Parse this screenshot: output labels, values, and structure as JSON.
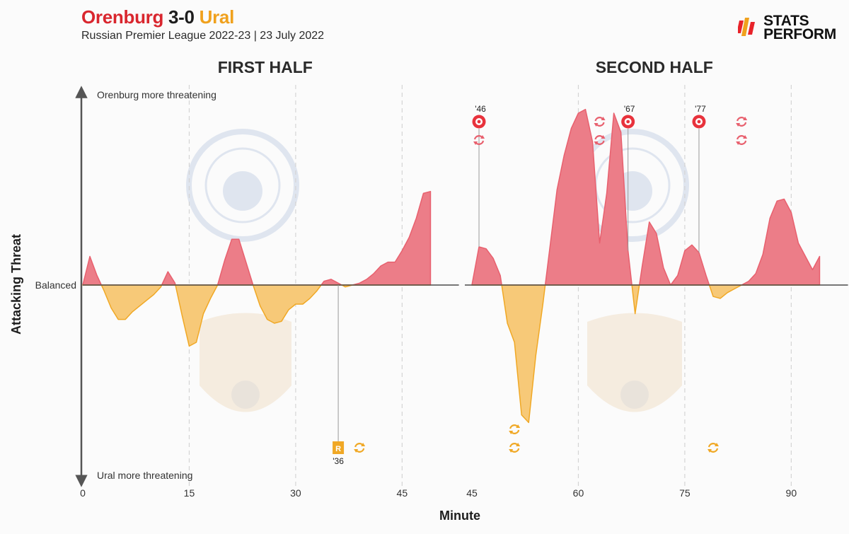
{
  "header": {
    "home_team": "Orenburg",
    "score": "3-0",
    "away_team": "Ural",
    "subtitle": "Russian Premier League 2022-23 | 23 July 2022"
  },
  "brand": {
    "line1": "STATS",
    "line2": "PERFORM"
  },
  "colors": {
    "home": "#e8606e",
    "home_fill": "#ec7d88",
    "away": "#f0a825",
    "away_fill": "#f7c978",
    "grid": "#d4d4d4",
    "axis": "#555555"
  },
  "chart_data": {
    "type": "area",
    "xlabel": "Minute",
    "ylabel": "Attacking Threat",
    "ylim": [
      -100,
      100
    ],
    "axis_top_label": "Orenburg more threatening",
    "axis_bottom_label": "Ural more threatening",
    "balanced_label": "Balanced",
    "panels": [
      {
        "title": "FIRST HALF",
        "xlim": [
          0,
          53
        ],
        "xticks": [
          0,
          15,
          30,
          45
        ],
        "x": [
          0,
          1,
          2,
          3,
          4,
          5,
          6,
          7,
          8,
          9,
          10,
          11,
          12,
          13,
          14,
          15,
          16,
          17,
          18,
          19,
          20,
          21,
          22,
          23,
          24,
          25,
          26,
          27,
          28,
          29,
          30,
          31,
          32,
          33,
          34,
          35,
          36,
          37,
          38,
          39,
          40,
          41,
          42,
          43,
          44,
          45,
          46,
          47,
          48,
          49
        ],
        "y": [
          0,
          15,
          5,
          -3,
          -12,
          -18,
          -18,
          -14,
          -11,
          -8,
          -5,
          -1,
          7,
          1,
          -16,
          -32,
          -30,
          -15,
          -7,
          0,
          13,
          24,
          24,
          12,
          0,
          -11,
          -18,
          -20,
          -19,
          -13,
          -10,
          -10,
          -7,
          -3,
          2,
          3,
          1,
          -1,
          0,
          1,
          3,
          6,
          10,
          12,
          12,
          18,
          25,
          35,
          48,
          49
        ],
        "events": [
          {
            "team": "away",
            "type": "red-card",
            "minute": 36,
            "label": "'36",
            "marker": "R"
          },
          {
            "team": "away",
            "type": "substitution",
            "minute": 39
          }
        ]
      },
      {
        "title": "SECOND HALF",
        "xlim": [
          45,
          98
        ],
        "xticks": [
          45,
          60,
          75,
          90
        ],
        "x": [
          45,
          46,
          47,
          48,
          49,
          50,
          51,
          52,
          53,
          54,
          55,
          56,
          57,
          58,
          59,
          60,
          61,
          62,
          63,
          64,
          65,
          66,
          67,
          68,
          69,
          70,
          71,
          72,
          73,
          74,
          75,
          76,
          77,
          78,
          79,
          80,
          81,
          82,
          83,
          84,
          85,
          86,
          87,
          88,
          89,
          90,
          91,
          92,
          93,
          94
        ],
        "y": [
          0,
          20,
          19,
          14,
          5,
          -20,
          -30,
          -68,
          -72,
          -37,
          -10,
          20,
          50,
          68,
          82,
          90,
          92,
          75,
          22,
          48,
          90,
          80,
          18,
          -15,
          10,
          33,
          27,
          9,
          0,
          5,
          18,
          21,
          17,
          5,
          -6,
          -7,
          -4,
          -2,
          0,
          2,
          6,
          16,
          35,
          44,
          45,
          38,
          22,
          15,
          8,
          15
        ],
        "events": [
          {
            "team": "home",
            "type": "goal",
            "minute": 46,
            "label": "'46"
          },
          {
            "team": "home",
            "type": "substitution",
            "minute": 46
          },
          {
            "team": "home",
            "type": "substitution",
            "minute": 63
          },
          {
            "team": "home",
            "type": "substitution",
            "minute": 63
          },
          {
            "team": "home",
            "type": "goal",
            "minute": 67,
            "label": "'67"
          },
          {
            "team": "home",
            "type": "goal",
            "minute": 77,
            "label": "'77"
          },
          {
            "team": "home",
            "type": "substitution",
            "minute": 83
          },
          {
            "team": "home",
            "type": "substitution",
            "minute": 83
          },
          {
            "team": "away",
            "type": "substitution",
            "minute": 51
          },
          {
            "team": "away",
            "type": "substitution",
            "minute": 51
          },
          {
            "team": "away",
            "type": "substitution",
            "minute": 79
          }
        ]
      }
    ]
  }
}
